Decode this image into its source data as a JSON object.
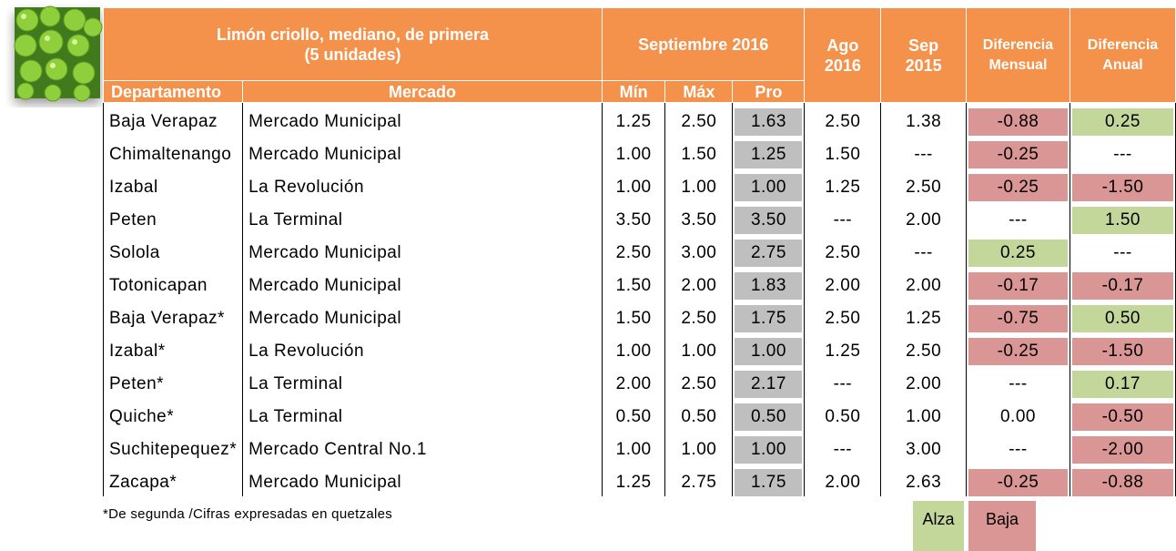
{
  "header": {
    "title": "Limón criollo, mediano, de primera",
    "subtitle": "(5 unidades)",
    "period": "Septiembre 2016",
    "columns": [
      "Departamento",
      "Mercado",
      "Mín",
      "Máx",
      "Pro",
      "Ago 2016",
      "Sep 2015",
      "Diferencia Mensual",
      "Diferencia Anual"
    ]
  },
  "table": {
    "rows": [
      [
        "Baja Verapaz",
        "Mercado Municipal",
        "1.25",
        "2.50",
        "1.63",
        "2.50",
        "1.38",
        "-0.88",
        "0.25"
      ],
      [
        "Chimaltenango",
        "Mercado Municipal",
        "1.00",
        "1.50",
        "1.25",
        "1.50",
        "---",
        "-0.25",
        "---"
      ],
      [
        "Izabal",
        "La Revolución",
        "1.00",
        "1.00",
        "1.00",
        "1.25",
        "2.50",
        "-0.25",
        "-1.50"
      ],
      [
        "Peten",
        "La Terminal",
        "3.50",
        "3.50",
        "3.50",
        "---",
        "2.00",
        "---",
        "1.50"
      ],
      [
        "Solola",
        "Mercado Municipal",
        "2.50",
        "3.00",
        "2.75",
        "2.50",
        "---",
        "0.25",
        "---"
      ],
      [
        "Totonicapan",
        "Mercado Municipal",
        "1.50",
        "2.00",
        "1.83",
        "2.00",
        "2.00",
        "-0.17",
        "-0.17"
      ],
      [
        "Baja Verapaz*",
        "Mercado Municipal",
        "1.50",
        "2.50",
        "1.75",
        "2.50",
        "1.25",
        "-0.75",
        "0.50"
      ],
      [
        "Izabal*",
        "La Revolución",
        "1.00",
        "1.00",
        "1.00",
        "1.25",
        "2.50",
        "-0.25",
        "-1.50"
      ],
      [
        "Peten*",
        "La Terminal",
        "2.00",
        "2.50",
        "2.17",
        "---",
        "2.00",
        "---",
        "0.17"
      ],
      [
        "Quiche*",
        "La Terminal",
        "0.50",
        "0.50",
        "0.50",
        "0.50",
        "1.00",
        "0.00",
        "-0.50"
      ],
      [
        "Suchitepequez*",
        "Mercado Central No.1",
        "1.00",
        "1.00",
        "1.00",
        "---",
        "3.00",
        "---",
        "-2.00"
      ],
      [
        "Zacapa*",
        "Mercado Municipal",
        "1.25",
        "2.75",
        "1.75",
        "2.00",
        "2.63",
        "-0.25",
        "-0.88"
      ]
    ]
  },
  "footnote": "*De segunda /Cifras expresadas en quetzales",
  "legend": [
    {
      "label": "Alza",
      "color": "#c4d79b"
    },
    {
      "label": "Baja",
      "color": "#da9694"
    }
  ]
}
